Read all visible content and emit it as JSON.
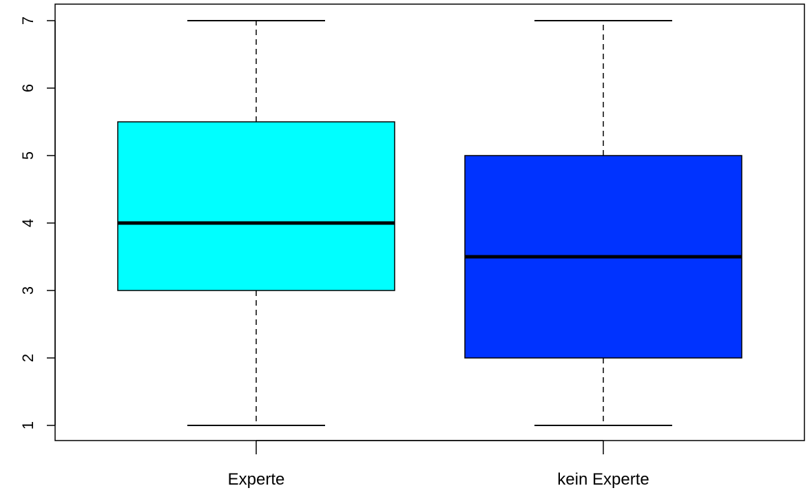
{
  "chart_data": {
    "type": "boxplot",
    "title": "",
    "xlabel": "",
    "ylabel": "",
    "ylim": [
      0.76,
      7.25
    ],
    "yticks": [
      1,
      2,
      3,
      4,
      5,
      6,
      7
    ],
    "grid": false,
    "categories": [
      "Experte",
      "kein Experte"
    ],
    "boxes": [
      {
        "category": "Experte",
        "min": 1,
        "q1": 3,
        "median": 4,
        "q3": 5.5,
        "max": 7,
        "color": "#00FFFF"
      },
      {
        "category": "kein Experte",
        "min": 1,
        "q1": 2,
        "median": 3.5,
        "q3": 5,
        "max": 7,
        "color": "#0033FF"
      }
    ]
  }
}
